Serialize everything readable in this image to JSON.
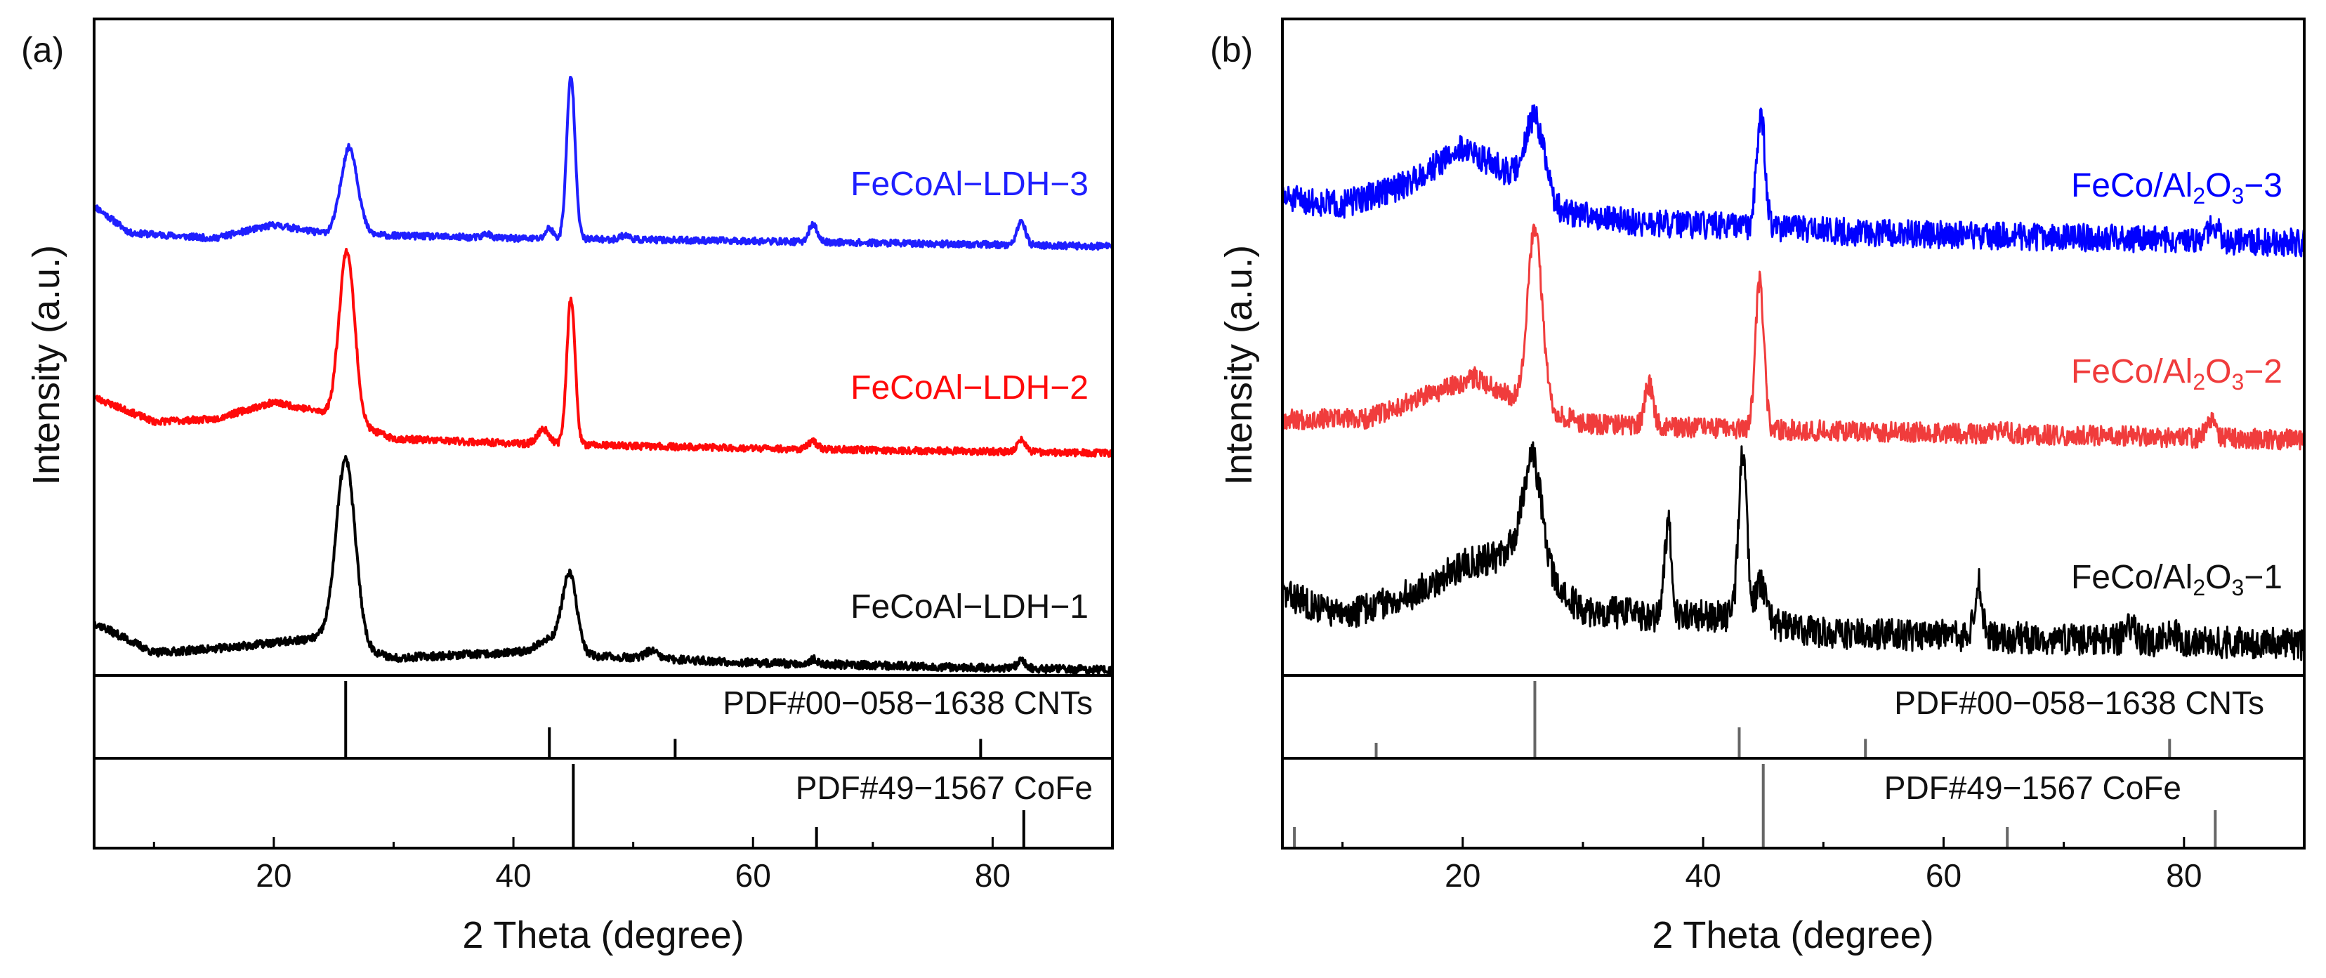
{
  "chart_data": [
    {
      "type": "line",
      "panel_label": "(a)",
      "xlabel": "2 Theta (degree)",
      "ylabel": "Intensity (a.u.)",
      "xlim": [
        5,
        90
      ],
      "xticks": [
        20,
        40,
        60,
        80
      ],
      "yticks_shown": false,
      "series": [
        {
          "name": "FeCoAl−LDH−3",
          "color": "#1f1fff",
          "noise": 0.6,
          "seed": 11,
          "baseline": [
            [
              5,
              8
            ],
            [
              8,
              3
            ],
            [
              15,
              2
            ],
            [
              20,
              4.5
            ],
            [
              24,
              3
            ],
            [
              30,
              2.5
            ],
            [
              40,
              2
            ],
            [
              60,
              1.5
            ],
            [
              90,
              0.5
            ]
          ],
          "peaks": [
            [
              26.3,
              16,
              0.7
            ],
            [
              37.8,
              0.8,
              0.3
            ],
            [
              43,
              2,
              0.3
            ],
            [
              44.8,
              30,
              0.35
            ],
            [
              49.3,
              0.8,
              0.4
            ],
            [
              65,
              3.2,
              0.35
            ],
            [
              82.4,
              4.2,
              0.35
            ]
          ]
        },
        {
          "name": "FeCoAl−LDH−2",
          "color": "#ff0a0a",
          "noise": 0.7,
          "seed": 23,
          "baseline": [
            [
              5,
              12
            ],
            [
              10,
              7
            ],
            [
              15,
              7.5
            ],
            [
              20,
              11
            ],
            [
              24,
              9
            ],
            [
              30,
              3.5
            ],
            [
              40,
              2.5
            ],
            [
              60,
              1.5
            ],
            [
              90,
              0.5
            ]
          ],
          "peaks": [
            [
              26.1,
              35,
              0.65
            ],
            [
              42.5,
              3,
              0.5
            ],
            [
              44.8,
              30,
              0.35
            ],
            [
              65,
              1.5,
              0.4
            ],
            [
              82.4,
              2.5,
              0.35
            ]
          ]
        },
        {
          "name": "FeCoAl−LDH−1",
          "color": "#000000",
          "noise": 0.8,
          "seed": 37,
          "baseline": [
            [
              5,
              10
            ],
            [
              10,
              4
            ],
            [
              16,
              5
            ],
            [
              20,
              6
            ],
            [
              24,
              7
            ],
            [
              30,
              3
            ],
            [
              40,
              4
            ],
            [
              50,
              3
            ],
            [
              60,
              2
            ],
            [
              90,
              0.5
            ]
          ],
          "peaks": [
            [
              26,
              37,
              0.8
            ],
            [
              43.2,
              3,
              1.2
            ],
            [
              44.7,
              15,
              0.6
            ],
            [
              51.5,
              1.5,
              0.5
            ],
            [
              65,
              1,
              0.3
            ],
            [
              82.4,
              1.5,
              0.35
            ]
          ]
        }
      ],
      "reference_patterns": [
        {
          "label": "PDF#00−058−1638 CNTs",
          "positions": [
            26,
            43,
            53.5,
            79
          ],
          "heights": [
            1.0,
            0.4,
            0.25,
            0.25
          ],
          "color": "#000000"
        },
        {
          "label": "PDF#49−1567 CoFe",
          "positions": [
            45,
            65.3,
            82.6
          ],
          "heights": [
            1.0,
            0.25,
            0.45
          ],
          "color": "#000000"
        }
      ]
    },
    {
      "type": "line",
      "panel_label": "(b)",
      "xlabel": "2 Theta (degree)",
      "ylabel": "Intensity (a.u.)",
      "xlim": [
        5,
        90
      ],
      "xticks": [
        20,
        40,
        60,
        80
      ],
      "yticks_shown": false,
      "series": [
        {
          "name": "FeCo/Al2O3−3",
          "color": "#0000ff",
          "noise": 2.2,
          "seed": 51,
          "baseline": [
            [
              5,
              8
            ],
            [
              10,
              7
            ],
            [
              15,
              10
            ],
            [
              20,
              16
            ],
            [
              23,
              13
            ],
            [
              28,
              6
            ],
            [
              35,
              4
            ],
            [
              44,
              3.5
            ],
            [
              55,
              2.5
            ],
            [
              90,
              1
            ]
          ],
          "peaks": [
            [
              26,
              12,
              0.8
            ],
            [
              44.8,
              18,
              0.35
            ],
            [
              82.5,
              2.5,
              0.4
            ]
          ]
        },
        {
          "name": "FeCo/Al2O3−2",
          "color": "#f03c3c",
          "noise": 2.2,
          "seed": 67,
          "baseline": [
            [
              5,
              5
            ],
            [
              12,
              5
            ],
            [
              17,
              10
            ],
            [
              21,
              14
            ],
            [
              24,
              10
            ],
            [
              30,
              4
            ],
            [
              40,
              3
            ],
            [
              60,
              2
            ],
            [
              90,
              0.5
            ]
          ],
          "peaks": [
            [
              26,
              38,
              0.6
            ],
            [
              35.5,
              9,
              0.35
            ],
            [
              44.7,
              32,
              0.35
            ],
            [
              65,
              1.5,
              0.4
            ],
            [
              82.2,
              4.5,
              0.35
            ]
          ]
        },
        {
          "name": "FeCo/Al2O3−1",
          "color": "#000000",
          "noise": 2.8,
          "seed": 83,
          "baseline": [
            [
              5,
              10
            ],
            [
              10,
              6
            ],
            [
              16,
              10
            ],
            [
              20,
              15
            ],
            [
              22,
              16
            ],
            [
              24,
              17
            ],
            [
              30,
              7
            ],
            [
              36,
              6
            ],
            [
              42,
              6
            ],
            [
              50,
              3
            ],
            [
              60,
              2.5
            ],
            [
              90,
              1
            ]
          ],
          "peaks": [
            [
              25.8,
              20,
              0.8
            ],
            [
              37.1,
              16,
              0.3
            ],
            [
              43.3,
              29,
              0.35
            ],
            [
              44.8,
              7,
              0.4
            ],
            [
              62.9,
              10,
              0.3
            ],
            [
              75.5,
              2.5,
              0.4
            ],
            [
              79,
              2,
              0.4
            ]
          ]
        }
      ],
      "reference_patterns": [
        {
          "label": "PDF#00−058−1638 CNTs",
          "positions": [
            12.8,
            26,
            43,
            53.5,
            78.8
          ],
          "heights": [
            0.2,
            1.0,
            0.4,
            0.25,
            0.25
          ],
          "color": "#666666"
        },
        {
          "label": "PDF#49−1567 CoFe",
          "positions": [
            6,
            45,
            65.3,
            82.6
          ],
          "heights": [
            0.25,
            1.0,
            0.25,
            0.45
          ],
          "color": "#666666"
        }
      ]
    }
  ],
  "panel_a": {
    "panel_label": "(a)",
    "xlabel": "2 Theta (degree)",
    "ylabel": "Intensity (a.u.)",
    "ticks": [
      "20",
      "40",
      "60",
      "80"
    ],
    "series_labels": [
      "FeCoAl−LDH−3",
      "FeCoAl−LDH−2",
      "FeCoAl−LDH−1"
    ],
    "ref_labels": [
      "PDF#00−058−1638 CNTs",
      "PDF#49−1567 CoFe"
    ]
  },
  "panel_b": {
    "panel_label": "(b)",
    "xlabel": "2 Theta (degree)",
    "ylabel": "Intensity (a.u.)",
    "ticks": [
      "20",
      "40",
      "60",
      "80"
    ],
    "series_labels": [
      {
        "prefix": "FeCo/Al",
        "sub": "2",
        "mid": "O",
        "sub2": "3",
        "suffix": "−3"
      },
      {
        "prefix": "FeCo/Al",
        "sub": "2",
        "mid": "O",
        "sub2": "3",
        "suffix": "−2"
      },
      {
        "prefix": "FeCo/Al",
        "sub": "2",
        "mid": "O",
        "sub2": "3",
        "suffix": "−1"
      }
    ],
    "ref_labels": [
      "PDF#00−058−1638 CNTs",
      "PDF#49−1567 CoFe"
    ]
  }
}
